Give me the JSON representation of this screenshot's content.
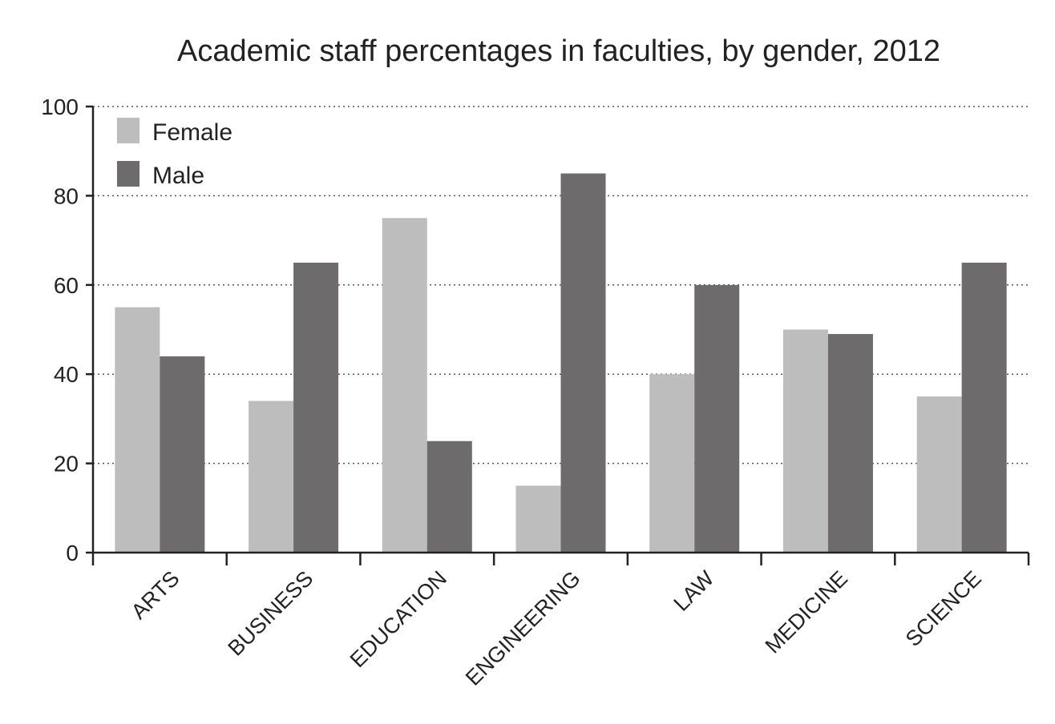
{
  "chart_data": {
    "type": "bar",
    "title": "Academic staff percentages in faculties, by gender, 2012",
    "xlabel": "",
    "ylabel": "",
    "categories": [
      "ARTS",
      "BUSINESS",
      "EDUCATION",
      "ENGINEERING",
      "LAW",
      "MEDICINE",
      "SCIENCE"
    ],
    "series": [
      {
        "name": "Female",
        "color": "#bdbdbd",
        "values": [
          55,
          34,
          75,
          15,
          40,
          50,
          35
        ]
      },
      {
        "name": "Male",
        "color": "#6d6b6c",
        "values": [
          44,
          65,
          25,
          85,
          60,
          49,
          65
        ]
      }
    ],
    "ylim": [
      0,
      100
    ],
    "yticks": [
      "0",
      "20",
      "40",
      "60",
      "80",
      "100"
    ],
    "grid": true,
    "legend_position": "top-left"
  }
}
